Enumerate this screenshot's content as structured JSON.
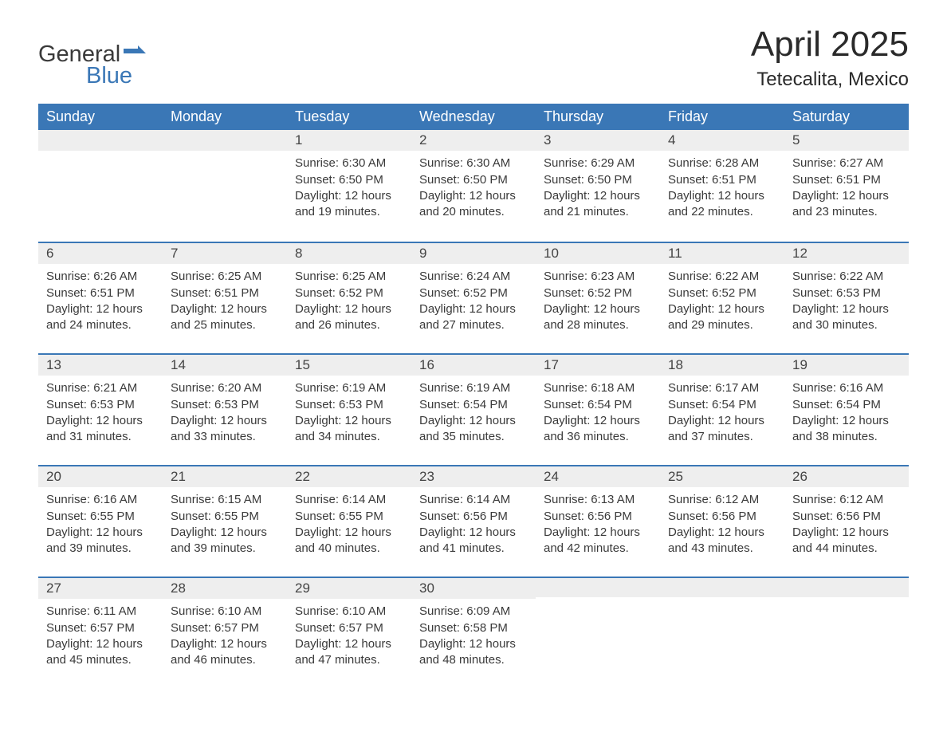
{
  "brand": {
    "word1": "General",
    "word2": "Blue",
    "accent_color": "#3a77b6"
  },
  "title": "April 2025",
  "location": "Tetecalita, Mexico",
  "colors": {
    "header_bg": "#3a77b6",
    "header_text": "#ffffff",
    "daynum_bg": "#eeeeee",
    "row_border": "#3a77b6",
    "body_text": "#3a3a3a",
    "page_bg": "#ffffff"
  },
  "day_headers": [
    "Sunday",
    "Monday",
    "Tuesday",
    "Wednesday",
    "Thursday",
    "Friday",
    "Saturday"
  ],
  "labels": {
    "sunrise": "Sunrise:",
    "sunset": "Sunset:",
    "daylight": "Daylight:"
  },
  "weeks": [
    [
      null,
      null,
      {
        "n": "1",
        "sunrise": "6:30 AM",
        "sunset": "6:50 PM",
        "daylight": "12 hours and 19 minutes."
      },
      {
        "n": "2",
        "sunrise": "6:30 AM",
        "sunset": "6:50 PM",
        "daylight": "12 hours and 20 minutes."
      },
      {
        "n": "3",
        "sunrise": "6:29 AM",
        "sunset": "6:50 PM",
        "daylight": "12 hours and 21 minutes."
      },
      {
        "n": "4",
        "sunrise": "6:28 AM",
        "sunset": "6:51 PM",
        "daylight": "12 hours and 22 minutes."
      },
      {
        "n": "5",
        "sunrise": "6:27 AM",
        "sunset": "6:51 PM",
        "daylight": "12 hours and 23 minutes."
      }
    ],
    [
      {
        "n": "6",
        "sunrise": "6:26 AM",
        "sunset": "6:51 PM",
        "daylight": "12 hours and 24 minutes."
      },
      {
        "n": "7",
        "sunrise": "6:25 AM",
        "sunset": "6:51 PM",
        "daylight": "12 hours and 25 minutes."
      },
      {
        "n": "8",
        "sunrise": "6:25 AM",
        "sunset": "6:52 PM",
        "daylight": "12 hours and 26 minutes."
      },
      {
        "n": "9",
        "sunrise": "6:24 AM",
        "sunset": "6:52 PM",
        "daylight": "12 hours and 27 minutes."
      },
      {
        "n": "10",
        "sunrise": "6:23 AM",
        "sunset": "6:52 PM",
        "daylight": "12 hours and 28 minutes."
      },
      {
        "n": "11",
        "sunrise": "6:22 AM",
        "sunset": "6:52 PM",
        "daylight": "12 hours and 29 minutes."
      },
      {
        "n": "12",
        "sunrise": "6:22 AM",
        "sunset": "6:53 PM",
        "daylight": "12 hours and 30 minutes."
      }
    ],
    [
      {
        "n": "13",
        "sunrise": "6:21 AM",
        "sunset": "6:53 PM",
        "daylight": "12 hours and 31 minutes."
      },
      {
        "n": "14",
        "sunrise": "6:20 AM",
        "sunset": "6:53 PM",
        "daylight": "12 hours and 33 minutes."
      },
      {
        "n": "15",
        "sunrise": "6:19 AM",
        "sunset": "6:53 PM",
        "daylight": "12 hours and 34 minutes."
      },
      {
        "n": "16",
        "sunrise": "6:19 AM",
        "sunset": "6:54 PM",
        "daylight": "12 hours and 35 minutes."
      },
      {
        "n": "17",
        "sunrise": "6:18 AM",
        "sunset": "6:54 PM",
        "daylight": "12 hours and 36 minutes."
      },
      {
        "n": "18",
        "sunrise": "6:17 AM",
        "sunset": "6:54 PM",
        "daylight": "12 hours and 37 minutes."
      },
      {
        "n": "19",
        "sunrise": "6:16 AM",
        "sunset": "6:54 PM",
        "daylight": "12 hours and 38 minutes."
      }
    ],
    [
      {
        "n": "20",
        "sunrise": "6:16 AM",
        "sunset": "6:55 PM",
        "daylight": "12 hours and 39 minutes."
      },
      {
        "n": "21",
        "sunrise": "6:15 AM",
        "sunset": "6:55 PM",
        "daylight": "12 hours and 39 minutes."
      },
      {
        "n": "22",
        "sunrise": "6:14 AM",
        "sunset": "6:55 PM",
        "daylight": "12 hours and 40 minutes."
      },
      {
        "n": "23",
        "sunrise": "6:14 AM",
        "sunset": "6:56 PM",
        "daylight": "12 hours and 41 minutes."
      },
      {
        "n": "24",
        "sunrise": "6:13 AM",
        "sunset": "6:56 PM",
        "daylight": "12 hours and 42 minutes."
      },
      {
        "n": "25",
        "sunrise": "6:12 AM",
        "sunset": "6:56 PM",
        "daylight": "12 hours and 43 minutes."
      },
      {
        "n": "26",
        "sunrise": "6:12 AM",
        "sunset": "6:56 PM",
        "daylight": "12 hours and 44 minutes."
      }
    ],
    [
      {
        "n": "27",
        "sunrise": "6:11 AM",
        "sunset": "6:57 PM",
        "daylight": "12 hours and 45 minutes."
      },
      {
        "n": "28",
        "sunrise": "6:10 AM",
        "sunset": "6:57 PM",
        "daylight": "12 hours and 46 minutes."
      },
      {
        "n": "29",
        "sunrise": "6:10 AM",
        "sunset": "6:57 PM",
        "daylight": "12 hours and 47 minutes."
      },
      {
        "n": "30",
        "sunrise": "6:09 AM",
        "sunset": "6:58 PM",
        "daylight": "12 hours and 48 minutes."
      },
      null,
      null,
      null
    ]
  ]
}
